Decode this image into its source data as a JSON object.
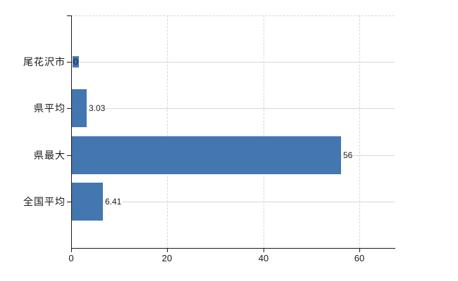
{
  "chart_data": {
    "type": "bar",
    "orientation": "horizontal",
    "title": "",
    "xlabel": "",
    "ylabel": "",
    "categories": [
      "尾花沢市",
      "県平均",
      "県最大",
      "全国平均"
    ],
    "values": [
      0,
      3.03,
      56,
      6.41
    ],
    "value_labels": [
      "0",
      "3.03",
      "56",
      "6.41"
    ],
    "x_ticks": [
      0,
      20,
      40,
      60
    ],
    "x_tick_labels": [
      "0",
      "20",
      "40",
      "60"
    ],
    "xlim": [
      0,
      67.3
    ],
    "grid": true,
    "legend_visible": false,
    "colors": {
      "bar": "#4477b0",
      "axis": "#1a1a1a",
      "grid_horizontal": "#d3dad3",
      "grid_vertical": "#d6d6d6",
      "text": "#1a1a1a",
      "background": "#ffffff"
    }
  }
}
